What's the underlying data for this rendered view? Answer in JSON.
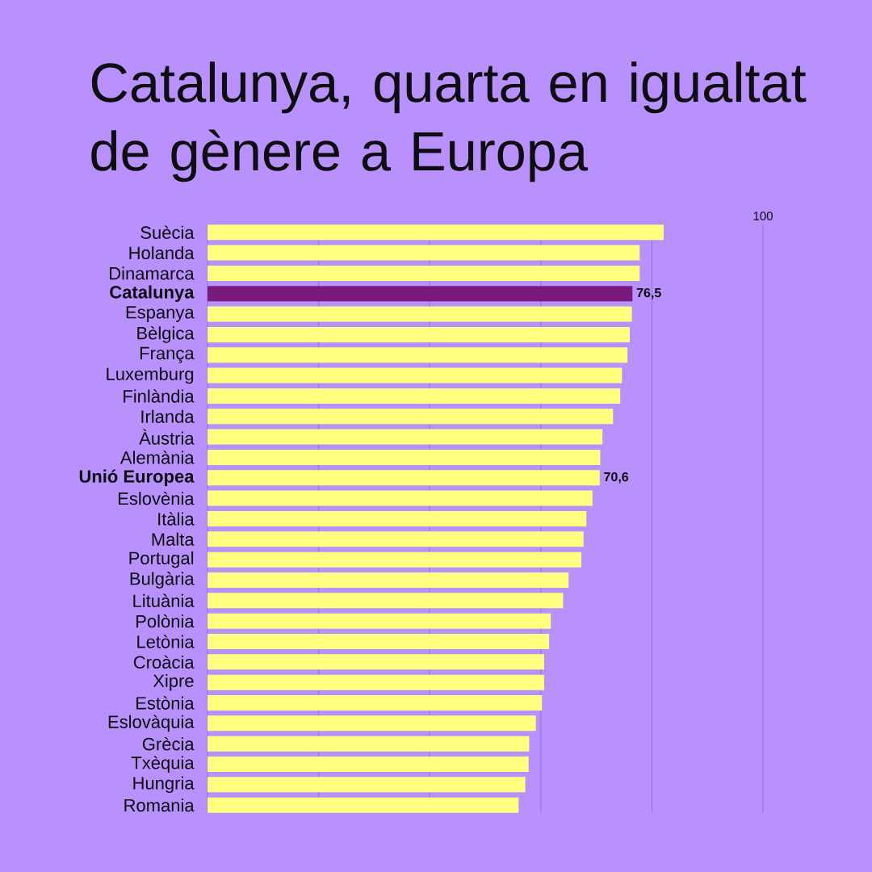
{
  "chart_data": {
    "type": "bar",
    "orientation": "horizontal",
    "title": "Catalunya, quarta en igualtat de gènere a Europa",
    "categories": [
      "Suècia",
      "Holanda",
      "Dinamarca",
      "**Catalunya**",
      "Espanya",
      "Bèlgica",
      "França",
      "Luxemburg",
      "Finlàndia",
      "Irlanda",
      "Àustria",
      "Alemània",
      "**Unió Europea**",
      "Eslovènia",
      "Itàlia",
      "Malta",
      "Portugal",
      "Bulgària",
      "Lituània",
      "Polònia",
      "Letònia",
      "Croàcia",
      "Xipre",
      "Estònia",
      "Eslovàquia",
      "Grècia",
      "Txèquia",
      "Hungria",
      "Romania"
    ],
    "values": [
      82.1,
      77.8,
      77.8,
      76.5,
      76.4,
      76.0,
      75.6,
      74.6,
      74.3,
      73.0,
      71.1,
      70.7,
      70.6,
      69.3,
      68.2,
      67.7,
      67.3,
      65.0,
      64.0,
      61.8,
      61.5,
      60.6,
      60.6,
      60.2,
      59.1,
      57.9,
      57.8,
      57.2,
      56.0
    ],
    "colors": [
      "#ffff80",
      "#ffff80",
      "#ffff80",
      "#7a1a7c",
      "#ffff80",
      "#ffff80",
      "#ffff80",
      "#ffff80",
      "#ffff80",
      "#ffff80",
      "#ffff80",
      "#ffff80",
      "#ffff80",
      "#ffff80",
      "#ffff80",
      "#ffff80",
      "#ffff80",
      "#ffff80",
      "#ffff80",
      "#ffff80",
      "#ffff80",
      "#ffff80",
      "#ffff80",
      "#ffff80",
      "#ffff80",
      "#ffff80",
      "#ffff80",
      "#ffff80",
      "#ffff80"
    ],
    "value_labels": [
      null,
      null,
      null,
      "76,5",
      null,
      null,
      null,
      null,
      null,
      null,
      null,
      null,
      "70,6",
      null,
      null,
      null,
      null,
      null,
      null,
      null,
      null,
      null,
      null,
      null,
      null,
      null,
      null,
      null,
      null
    ],
    "xlim": [
      0,
      100
    ],
    "xticks": [
      {
        "value": 0,
        "label": null
      },
      {
        "value": 20,
        "label": null
      },
      {
        "value": 40,
        "label": null
      },
      {
        "value": 60,
        "label": null
      },
      {
        "value": 80,
        "label": null
      },
      100
    ],
    "grid": "x"
  }
}
